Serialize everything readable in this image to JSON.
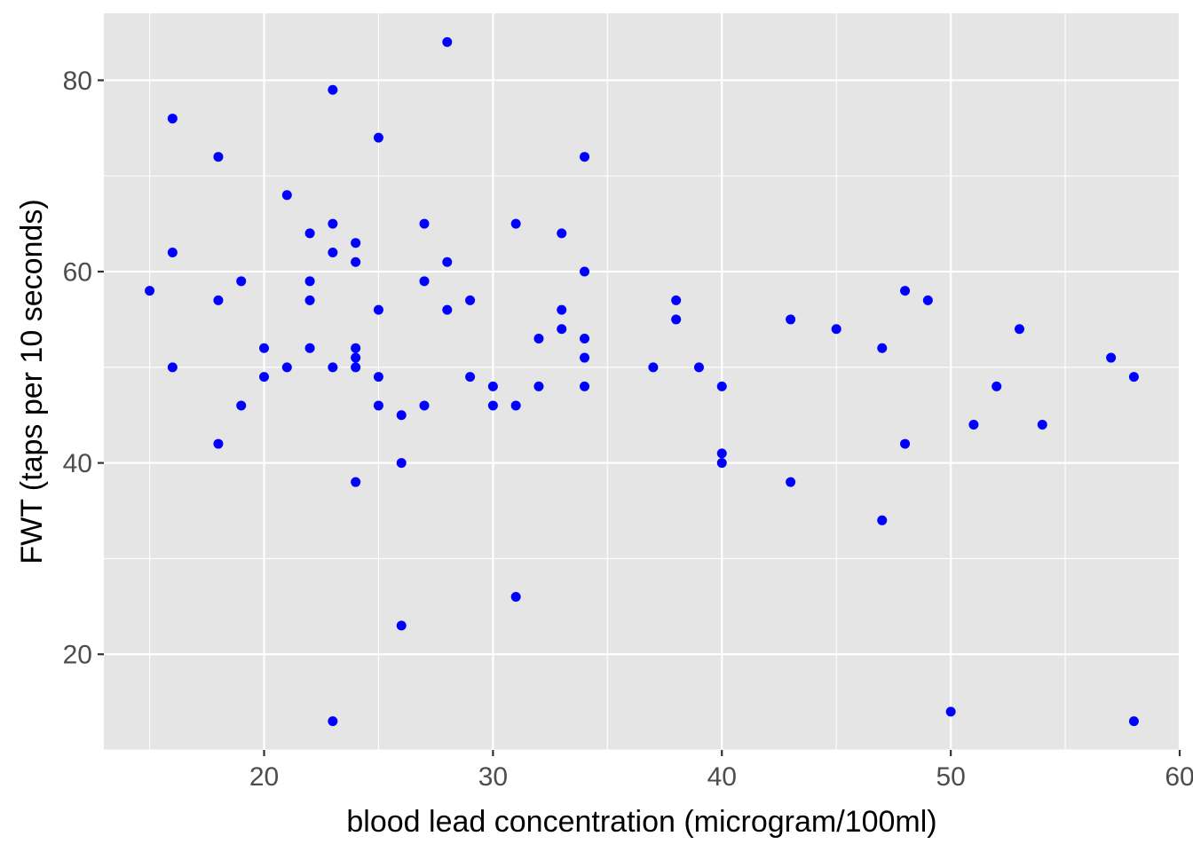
{
  "chart_data": {
    "type": "scatter",
    "title": "",
    "xlabel": "blood lead concentration (microgram/100ml)",
    "ylabel": "FWT (taps per 10 seconds)",
    "xlim": [
      13,
      60
    ],
    "ylim": [
      10,
      87
    ],
    "x_ticks": [
      20,
      30,
      40,
      50,
      60
    ],
    "y_ticks": [
      20,
      40,
      60,
      80
    ],
    "grid": true,
    "legend": "none",
    "colors": {
      "points": "#0000ff",
      "panel": "#e5e5e5",
      "grid": "#ffffff"
    },
    "points": [
      {
        "x": 15,
        "y": 58
      },
      {
        "x": 16,
        "y": 76
      },
      {
        "x": 16,
        "y": 62
      },
      {
        "x": 16,
        "y": 50
      },
      {
        "x": 18,
        "y": 72
      },
      {
        "x": 18,
        "y": 57
      },
      {
        "x": 18,
        "y": 42
      },
      {
        "x": 19,
        "y": 59
      },
      {
        "x": 19,
        "y": 46
      },
      {
        "x": 20,
        "y": 52
      },
      {
        "x": 20,
        "y": 49
      },
      {
        "x": 21,
        "y": 68
      },
      {
        "x": 21,
        "y": 50
      },
      {
        "x": 22,
        "y": 64
      },
      {
        "x": 22,
        "y": 59
      },
      {
        "x": 22,
        "y": 57
      },
      {
        "x": 22,
        "y": 52
      },
      {
        "x": 23,
        "y": 79
      },
      {
        "x": 23,
        "y": 65
      },
      {
        "x": 23,
        "y": 62
      },
      {
        "x": 23,
        "y": 50
      },
      {
        "x": 23,
        "y": 13
      },
      {
        "x": 24,
        "y": 63
      },
      {
        "x": 24,
        "y": 61
      },
      {
        "x": 24,
        "y": 52
      },
      {
        "x": 24,
        "y": 51
      },
      {
        "x": 24,
        "y": 50
      },
      {
        "x": 24,
        "y": 38
      },
      {
        "x": 25,
        "y": 74
      },
      {
        "x": 25,
        "y": 56
      },
      {
        "x": 25,
        "y": 49
      },
      {
        "x": 25,
        "y": 46
      },
      {
        "x": 26,
        "y": 45
      },
      {
        "x": 26,
        "y": 40
      },
      {
        "x": 26,
        "y": 23
      },
      {
        "x": 27,
        "y": 65
      },
      {
        "x": 27,
        "y": 59
      },
      {
        "x": 27,
        "y": 46
      },
      {
        "x": 28,
        "y": 84
      },
      {
        "x": 28,
        "y": 61
      },
      {
        "x": 28,
        "y": 56
      },
      {
        "x": 29,
        "y": 57
      },
      {
        "x": 29,
        "y": 49
      },
      {
        "x": 30,
        "y": 48
      },
      {
        "x": 30,
        "y": 46
      },
      {
        "x": 31,
        "y": 65
      },
      {
        "x": 31,
        "y": 46
      },
      {
        "x": 31,
        "y": 26
      },
      {
        "x": 32,
        "y": 53
      },
      {
        "x": 32,
        "y": 48
      },
      {
        "x": 33,
        "y": 64
      },
      {
        "x": 33,
        "y": 56
      },
      {
        "x": 33,
        "y": 54
      },
      {
        "x": 34,
        "y": 72
      },
      {
        "x": 34,
        "y": 60
      },
      {
        "x": 34,
        "y": 53
      },
      {
        "x": 34,
        "y": 51
      },
      {
        "x": 34,
        "y": 48
      },
      {
        "x": 37,
        "y": 50
      },
      {
        "x": 38,
        "y": 57
      },
      {
        "x": 38,
        "y": 55
      },
      {
        "x": 39,
        "y": 50
      },
      {
        "x": 40,
        "y": 48
      },
      {
        "x": 40,
        "y": 41
      },
      {
        "x": 40,
        "y": 40
      },
      {
        "x": 43,
        "y": 55
      },
      {
        "x": 43,
        "y": 38
      },
      {
        "x": 45,
        "y": 54
      },
      {
        "x": 47,
        "y": 52
      },
      {
        "x": 47,
        "y": 34
      },
      {
        "x": 48,
        "y": 58
      },
      {
        "x": 48,
        "y": 42
      },
      {
        "x": 49,
        "y": 57
      },
      {
        "x": 50,
        "y": 14
      },
      {
        "x": 51,
        "y": 44
      },
      {
        "x": 52,
        "y": 48
      },
      {
        "x": 53,
        "y": 54
      },
      {
        "x": 54,
        "y": 44
      },
      {
        "x": 57,
        "y": 51
      },
      {
        "x": 58,
        "y": 49
      },
      {
        "x": 58,
        "y": 13
      }
    ]
  }
}
